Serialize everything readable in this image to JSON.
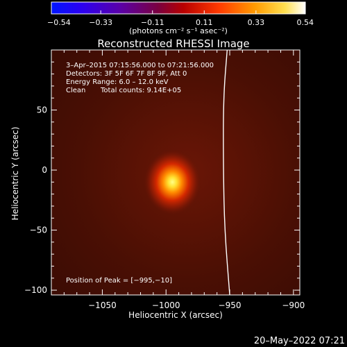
{
  "window": {
    "footer_timestamp": "20–May–2022 07:21"
  },
  "colorbar": {
    "ticks": [
      {
        "value": -0.54,
        "label": "−0.54"
      },
      {
        "value": -0.33,
        "label": "−0.33"
      },
      {
        "value": -0.11,
        "label": "−0.11"
      },
      {
        "value": 0.11,
        "label": "0.11"
      },
      {
        "value": 0.33,
        "label": "0.33"
      },
      {
        "value": 0.54,
        "label": "0.54"
      }
    ],
    "range": [
      -0.54,
      0.54
    ],
    "units_label": "(photons cm⁻² s⁻¹ asec⁻²)"
  },
  "chart_data": {
    "type": "heatmap",
    "title": "Reconstructed RHESSI Image",
    "xlabel": "Heliocentric X (arcsec)",
    "ylabel": "Heliocentric Y (arcsec)",
    "xlim": [
      -1090,
      -895
    ],
    "ylim": [
      -104,
      100
    ],
    "x_ticks": [
      {
        "value": -1050,
        "label": "−1050"
      },
      {
        "value": -1000,
        "label": "−1000"
      },
      {
        "value": -950,
        "label": "−950"
      },
      {
        "value": -900,
        "label": "−900"
      }
    ],
    "y_ticks": [
      {
        "value": 50,
        "label": "50"
      },
      {
        "value": 0,
        "label": "0"
      },
      {
        "value": -50,
        "label": "−50"
      },
      {
        "value": -100,
        "label": "−100"
      }
    ],
    "annotations": {
      "time_range": "3–Apr–2015 07:15:56.000 to 07:21:56.000",
      "detectors": "Detectors: 3F 5F 6F 7F 8F 9F, Att 0",
      "energy_range": "Energy Range: 6.0 – 12.0 keV",
      "clean_label": "Clean",
      "total_counts": "Total counts: 9.14E+05",
      "peak_position": "Position of Peak = [−995,−10]"
    },
    "source": {
      "peak_x": -995,
      "peak_y": -10,
      "peak_value": 0.54,
      "background_value": 0.1
    },
    "limb": [
      [
        -952,
        100
      ],
      [
        -955,
        60
      ],
      [
        -955,
        0
      ],
      [
        -954,
        -50
      ],
      [
        -950,
        -104
      ]
    ],
    "colormap": "hot"
  }
}
